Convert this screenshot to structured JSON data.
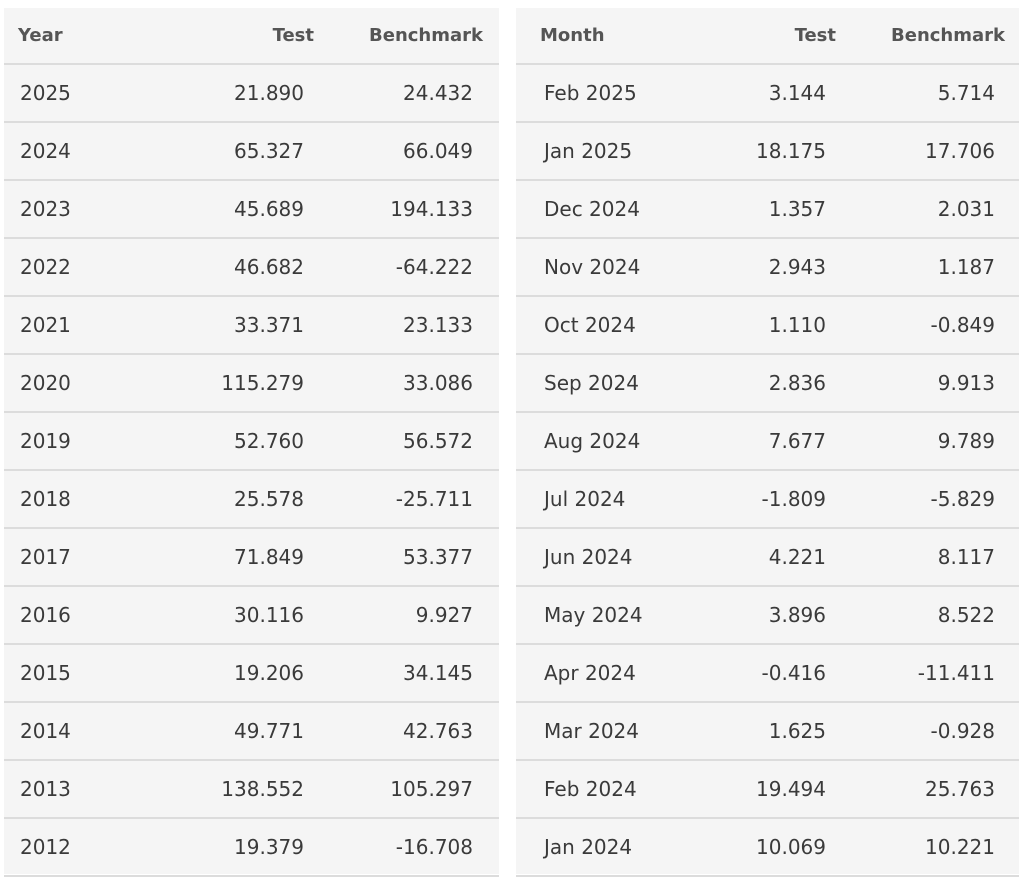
{
  "colors": {
    "positive": "#4e9a2f",
    "negative": "#d3302a",
    "panel_bg": "#f5f5f5",
    "row_border": "#dcdcdc",
    "header_text": "#555555",
    "label_text": "#3a3a3a"
  },
  "yearly": {
    "headers": [
      "Year",
      "Test",
      "Benchmark"
    ],
    "rows": [
      [
        "2025",
        "21.890",
        "24.432"
      ],
      [
        "2024",
        "65.327",
        "66.049"
      ],
      [
        "2023",
        "45.689",
        "194.133"
      ],
      [
        "2022",
        "46.682",
        "-64.222"
      ],
      [
        "2021",
        "33.371",
        "23.133"
      ],
      [
        "2020",
        "115.279",
        "33.086"
      ],
      [
        "2019",
        "52.760",
        "56.572"
      ],
      [
        "2018",
        "25.578",
        "-25.711"
      ],
      [
        "2017",
        "71.849",
        "53.377"
      ],
      [
        "2016",
        "30.116",
        "9.927"
      ],
      [
        "2015",
        "19.206",
        "34.145"
      ],
      [
        "2014",
        "49.771",
        "42.763"
      ],
      [
        "2013",
        "138.552",
        "105.297"
      ],
      [
        "2012",
        "19.379",
        "-16.708"
      ]
    ]
  },
  "monthly": {
    "headers": [
      "Month",
      "Test",
      "Benchmark"
    ],
    "rows": [
      [
        "Feb 2025",
        "3.144",
        "5.714"
      ],
      [
        "Jan 2025",
        "18.175",
        "17.706"
      ],
      [
        "Dec 2024",
        "1.357",
        "2.031"
      ],
      [
        "Nov 2024",
        "2.943",
        "1.187"
      ],
      [
        "Oct 2024",
        "1.110",
        "-0.849"
      ],
      [
        "Sep 2024",
        "2.836",
        "9.913"
      ],
      [
        "Aug 2024",
        "7.677",
        "9.789"
      ],
      [
        "Jul 2024",
        "-1.809",
        "-5.829"
      ],
      [
        "Jun 2024",
        "4.221",
        "8.117"
      ],
      [
        "May 2024",
        "3.896",
        "8.522"
      ],
      [
        "Apr 2024",
        "-0.416",
        "-11.411"
      ],
      [
        "Mar 2024",
        "1.625",
        "-0.928"
      ],
      [
        "Feb 2024",
        "19.494",
        "25.763"
      ],
      [
        "Jan 2024",
        "10.069",
        "10.221"
      ]
    ]
  }
}
